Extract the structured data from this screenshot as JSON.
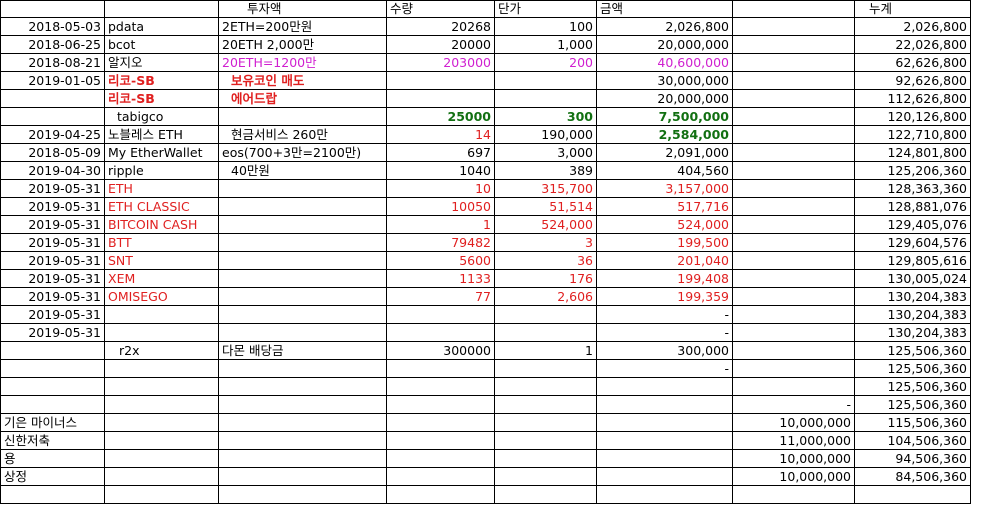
{
  "headers": {
    "investment": "투자액",
    "quantity": "수량",
    "unit_price": "단가",
    "amount": "금액",
    "cumulative": "누계"
  },
  "rows": [
    {
      "date": "2018-05-03",
      "name": "pdata",
      "note": "2ETH=200만원",
      "qty": "20268",
      "price": "100",
      "amount": "2,026,800",
      "f": "",
      "total": "2,026,800",
      "cls": ""
    },
    {
      "date": "2018-06-25",
      "name": "bcot",
      "note": "20ETH 2,000만",
      "qty": "20000",
      "price": "1,000",
      "amount": "20,000,000",
      "f": "",
      "total": "22,026,800",
      "cls": ""
    },
    {
      "date": "2018-08-21",
      "name": "알지오",
      "note": "20ETH=1200만",
      "qty": "203000",
      "price": "200",
      "amount": "40,600,000",
      "f": "",
      "total": "62,626,800",
      "cls": "pink"
    },
    {
      "date": "2019-01-05",
      "name": "리코-SB",
      "note": "보유코인 매도",
      "qty": "",
      "price": "",
      "amount": "30,000,000",
      "f": "",
      "total": "92,626,800",
      "cls": "bred"
    },
    {
      "date": "",
      "name": "리코-SB",
      "note": "에어드랍",
      "qty": "",
      "price": "",
      "amount": "20,000,000",
      "f": "",
      "total": "112,626,800",
      "cls": "bred"
    },
    {
      "date": "",
      "name": "tabigco",
      "note": "",
      "qty": "25000",
      "price": "300",
      "amount": "7,500,000",
      "f": "",
      "total": "120,126,800",
      "cls": "green"
    },
    {
      "date": "2019-04-25",
      "name": "노블레스 ETH",
      "note": "현금서비스 260만",
      "qty": "14",
      "price": "190,000",
      "amount": "2,584,000",
      "f": "",
      "total": "122,710,800",
      "cls": "mixed"
    },
    {
      "date": "2018-05-09",
      "name": "My EtherWallet",
      "note": "eos(700+3만=2100만)",
      "qty": "697",
      "price": "3,000",
      "amount": "2,091,000",
      "f": "",
      "total": "124,801,800",
      "cls": ""
    },
    {
      "date": "2019-04-30",
      "name": "ripple",
      "note": "40만원",
      "qty": "1040",
      "price": "389",
      "amount": "404,560",
      "f": "",
      "total": "125,206,360",
      "cls": ""
    },
    {
      "date": "2019-05-31",
      "name": "ETH",
      "note": "",
      "qty": "10",
      "price": "315,700",
      "amount": "3,157,000",
      "f": "",
      "total": "128,363,360",
      "cls": "red"
    },
    {
      "date": "2019-05-31",
      "name": "ETH CLASSIC",
      "note": "",
      "qty": "10050",
      "price": "51,514",
      "amount": "517,716",
      "f": "",
      "total": "128,881,076",
      "cls": "red"
    },
    {
      "date": "2019-05-31",
      "name": "BITCOIN CASH",
      "note": "",
      "qty": "1",
      "price": "524,000",
      "amount": "524,000",
      "f": "",
      "total": "129,405,076",
      "cls": "red"
    },
    {
      "date": "2019-05-31",
      "name": "BTT",
      "note": "",
      "qty": "79482",
      "price": "3",
      "amount": "199,500",
      "f": "",
      "total": "129,604,576",
      "cls": "red"
    },
    {
      "date": "2019-05-31",
      "name": "SNT",
      "note": "",
      "qty": "5600",
      "price": "36",
      "amount": "201,040",
      "f": "",
      "total": "129,805,616",
      "cls": "red"
    },
    {
      "date": "2019-05-31",
      "name": "XEM",
      "note": "",
      "qty": "1133",
      "price": "176",
      "amount": "199,408",
      "f": "",
      "total": "130,005,024",
      "cls": "red"
    },
    {
      "date": "2019-05-31",
      "name": "OMISEGO",
      "note": "",
      "qty": "77",
      "price": "2,606",
      "amount": "199,359",
      "f": "",
      "total": "130,204,383",
      "cls": "red"
    },
    {
      "date": "2019-05-31",
      "name": "",
      "note": "",
      "qty": "",
      "price": "",
      "amount": "-",
      "f": "",
      "total": "130,204,383",
      "cls": ""
    },
    {
      "date": "2019-05-31",
      "name": "",
      "note": "",
      "qty": "",
      "price": "",
      "amount": "-",
      "f": "",
      "total": "130,204,383",
      "cls": ""
    },
    {
      "date": "",
      "name": "r2x",
      "note": "다몬 배당금",
      "qty": "300000",
      "price": "1",
      "amount": "300,000",
      "f": "",
      "total": "125,506,360",
      "cls": "r2x"
    },
    {
      "date": "",
      "name": "",
      "note": "",
      "qty": "",
      "price": "",
      "amount": "-",
      "f": "",
      "total": "125,506,360",
      "cls": ""
    },
    {
      "date": "",
      "name": "",
      "note": "",
      "qty": "",
      "price": "",
      "amount": "",
      "f": "",
      "total": "125,506,360",
      "cls": ""
    },
    {
      "date": "",
      "name": "",
      "note": "",
      "qty": "",
      "price": "",
      "amount": "",
      "f": "-",
      "total": "125,506,360",
      "cls": ""
    },
    {
      "date": "기은 마이너스",
      "name": "",
      "note": "",
      "qty": "",
      "price": "",
      "amount": "",
      "f": "10,000,000",
      "total": "115,506,360",
      "cls": "lbl"
    },
    {
      "date": "신한저축",
      "name": "",
      "note": "",
      "qty": "",
      "price": "",
      "amount": "",
      "f": "11,000,000",
      "total": "104,506,360",
      "cls": "lbl"
    },
    {
      "date": "용",
      "name": "",
      "note": "",
      "qty": "",
      "price": "",
      "amount": "",
      "f": "10,000,000",
      "total": "94,506,360",
      "cls": "lbl"
    },
    {
      "date": "상정",
      "name": "",
      "note": "",
      "qty": "",
      "price": "",
      "amount": "",
      "f": "10,000,000",
      "total": "84,506,360",
      "cls": "lbl"
    },
    {
      "date": "",
      "name": "",
      "note": "",
      "qty": "",
      "price": "",
      "amount": "",
      "f": "",
      "total": "",
      "cls": ""
    }
  ]
}
